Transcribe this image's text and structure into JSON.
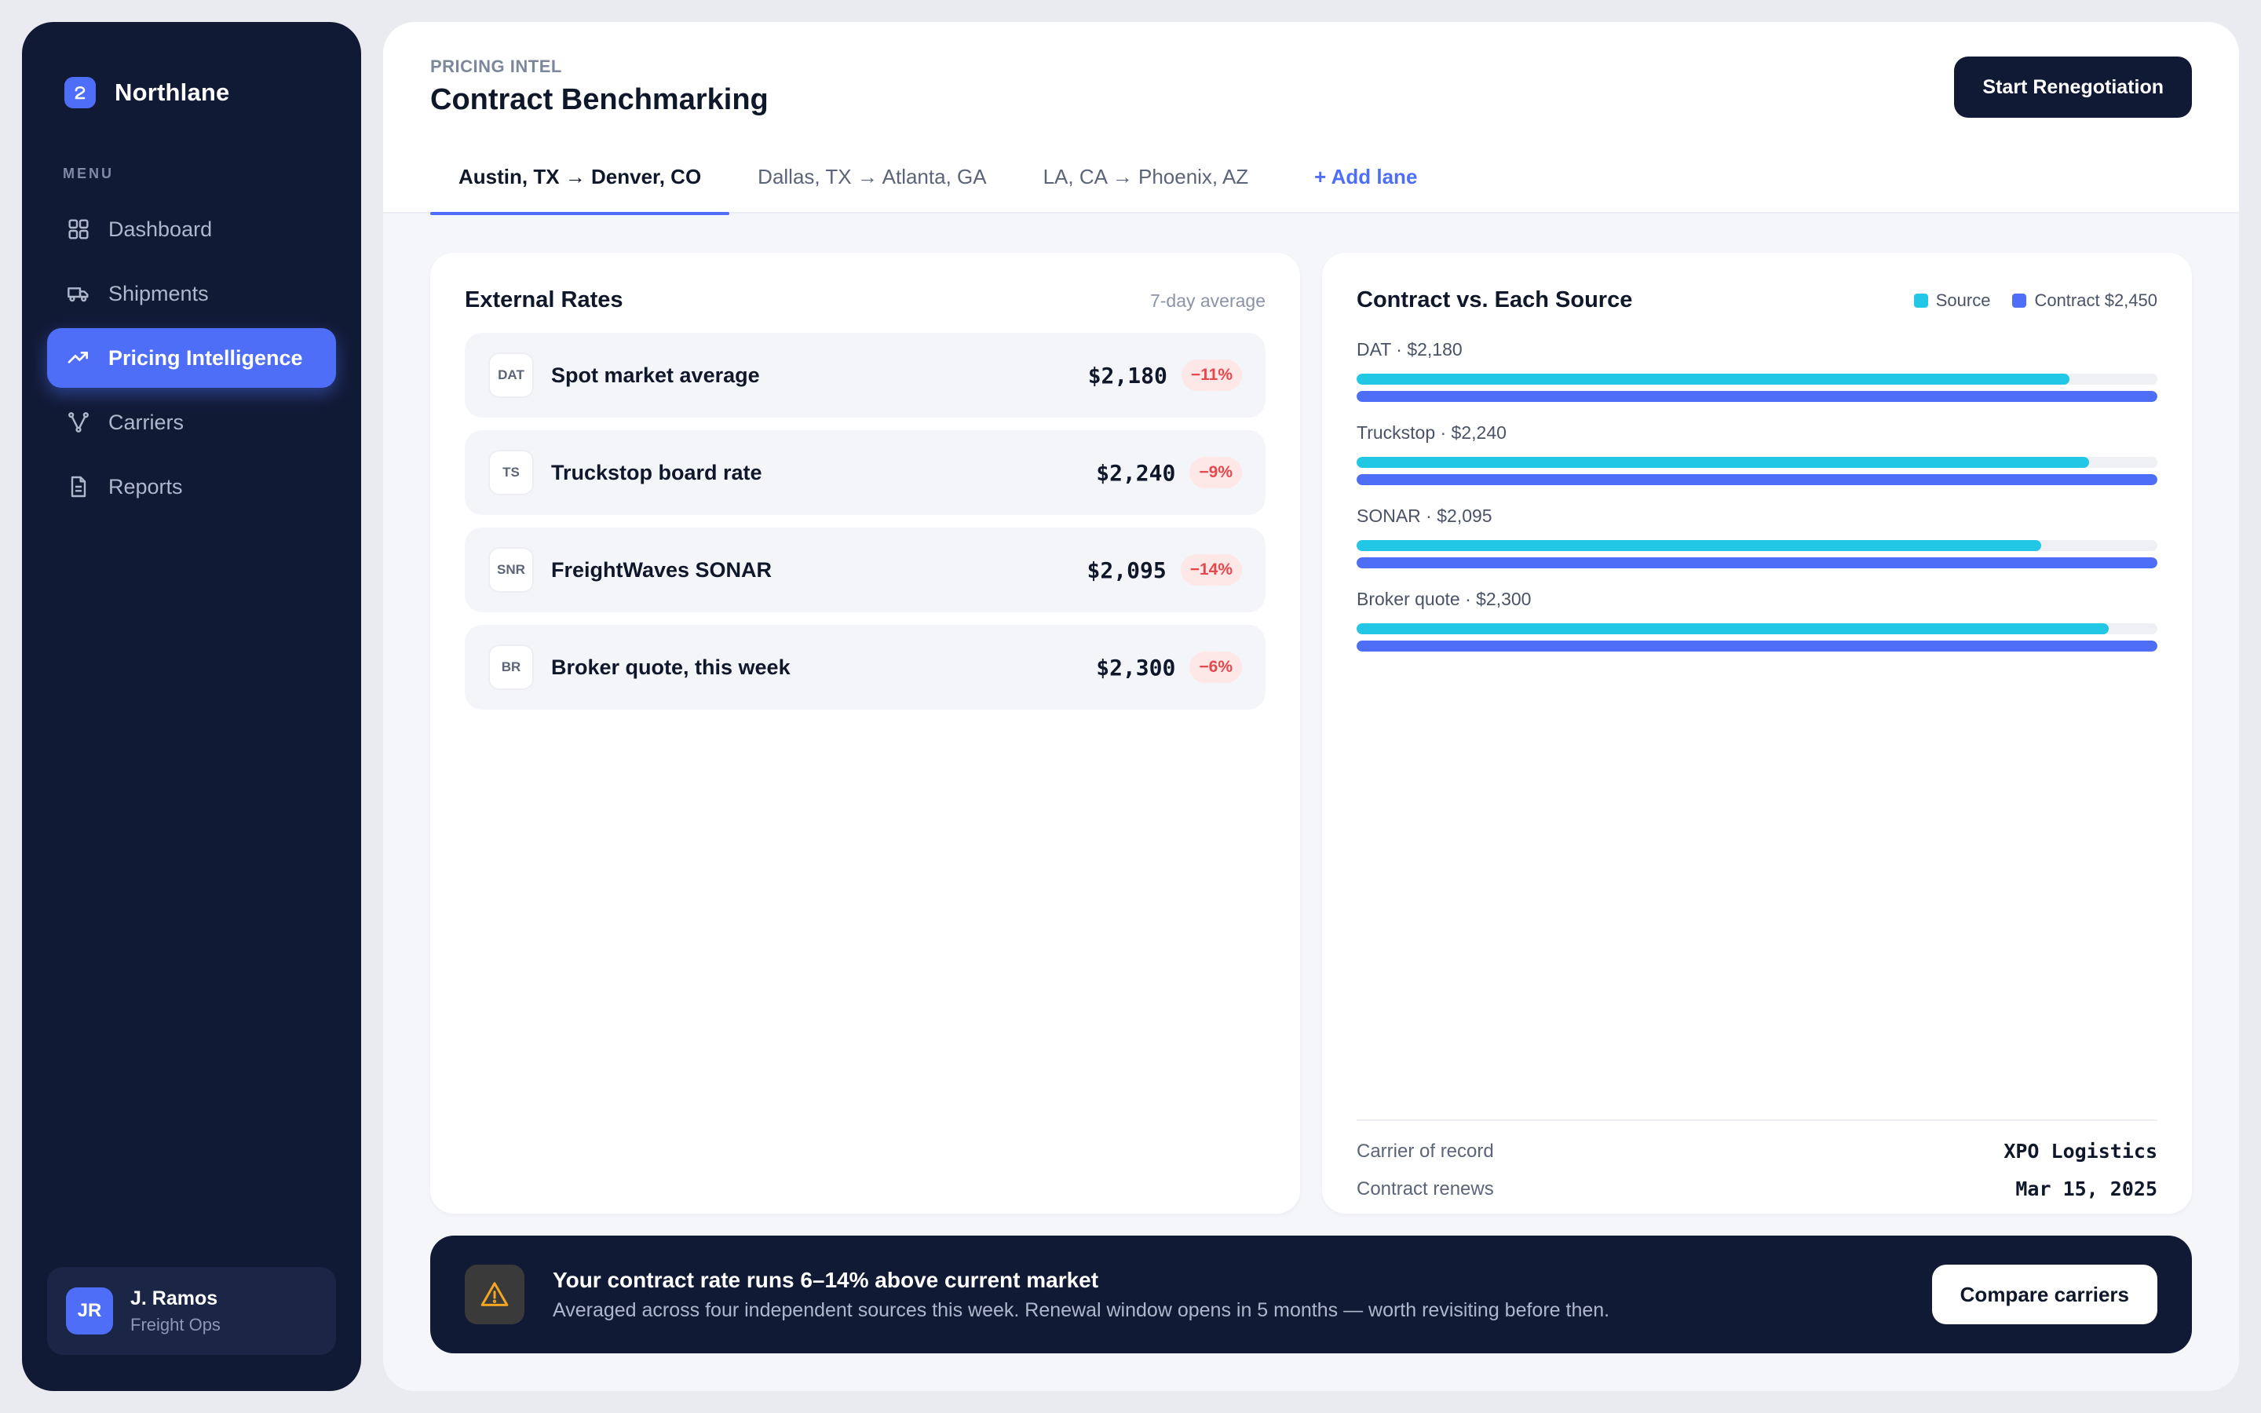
{
  "app": {
    "name": "Northlane"
  },
  "sidebar": {
    "caption": "MENU",
    "items": [
      {
        "label": "Dashboard",
        "icon": "grid-icon"
      },
      {
        "label": "Shipments",
        "icon": "truck-icon"
      },
      {
        "label": "Pricing Intelligence",
        "icon": "trend-up-icon",
        "active": true
      },
      {
        "label": "Carriers",
        "icon": "network-icon"
      },
      {
        "label": "Reports",
        "icon": "document-icon"
      }
    ],
    "user": {
      "initials": "JR",
      "name": "J. Ramos",
      "role": "Freight Ops"
    }
  },
  "header": {
    "eyebrow": "PRICING INTEL",
    "title": "Contract Benchmarking",
    "primary_action": "Start Renegotiation",
    "tabs": [
      {
        "label": "Austin, TX → Denver, CO",
        "active": true
      },
      {
        "label": "Dallas, TX → Atlanta, GA"
      },
      {
        "label": "LA, CA → Phoenix, AZ"
      },
      {
        "label": "+ Add lane"
      }
    ]
  },
  "external_rates": {
    "title": "External Rates",
    "note": "7-day average",
    "rows": [
      {
        "code": "DAT",
        "name": "Spot market average",
        "value": "$2,180",
        "delta": "−11%"
      },
      {
        "code": "TS",
        "name": "Truckstop board rate",
        "value": "$2,240",
        "delta": "−9%"
      },
      {
        "code": "SNR",
        "name": "FreightWaves SONAR",
        "value": "$2,095",
        "delta": "−14%"
      },
      {
        "code": "BR",
        "name": "Broker quote, this week",
        "value": "$2,300",
        "delta": "−6%"
      }
    ]
  },
  "comparison": {
    "title": "Contract vs. Each Source",
    "legend": {
      "source": "Source",
      "contract": "Contract $2,450"
    },
    "colors": {
      "source": "#22c7e6",
      "contract": "#4f6ef7"
    },
    "carrier_label": "Carrier of record",
    "carrier_value": "XPO Logistics",
    "renews_label": "Contract renews",
    "renews_value": "Mar 15, 2025"
  },
  "chart_data": {
    "type": "bar",
    "title": "Contract vs. Each Source",
    "categories": [
      "DAT",
      "Truckstop",
      "SONAR",
      "Broker quote"
    ],
    "labels": [
      "DAT · $2,180",
      "Truckstop · $2,240",
      "SONAR · $2,095",
      "Broker quote · $2,300"
    ],
    "series": [
      {
        "name": "Source",
        "values": [
          2180,
          2240,
          2095,
          2300
        ]
      },
      {
        "name": "Contract $2,450",
        "values": [
          2450,
          2450,
          2450,
          2450
        ]
      }
    ],
    "xlim": [
      0,
      2450
    ]
  },
  "alert": {
    "title": "Your contract rate runs 6–14% above current market",
    "body": "Averaged across four independent sources this week. Renewal window opens in 5 months — worth revisiting before then.",
    "action": "Compare carriers",
    "icon": "warning-icon"
  }
}
